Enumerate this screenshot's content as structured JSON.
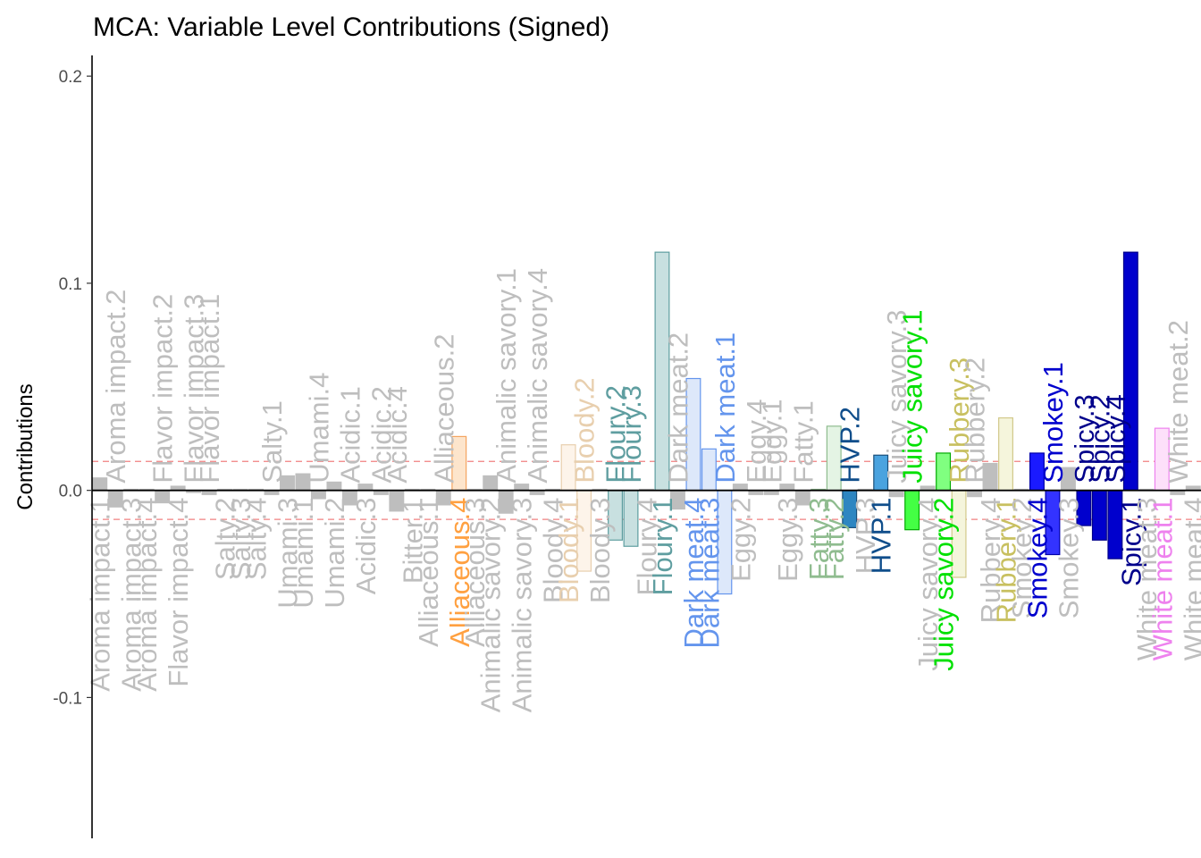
{
  "chart_data": {
    "type": "bar",
    "title": "MCA: Variable Level Contributions (Signed)",
    "xlabel": "",
    "ylabel": "Contributions",
    "ylim": [
      -0.168,
      0.21
    ],
    "yticks": [
      -0.1,
      0.0,
      0.1,
      0.2
    ],
    "ytick_labels": [
      "-0.1",
      "0.0",
      "0.1",
      "0.2"
    ],
    "threshold_lines": [
      0.014,
      -0.014
    ],
    "threshold_color": "#f08080",
    "grid": false,
    "legend": "none",
    "bars": [
      {
        "label": "Aroma impact.1",
        "value": 0.006,
        "fill": "#bebebe",
        "stroke": "#bebebe",
        "color": "#bebebe"
      },
      {
        "label": "Aroma impact.2",
        "value": -0.008,
        "fill": "#bebebe",
        "stroke": "#bebebe",
        "color": "#bebebe"
      },
      {
        "label": "Aroma impact.3",
        "value": 0.0005,
        "fill": "#bebebe",
        "stroke": "#bebebe",
        "color": "#bebebe"
      },
      {
        "label": "Aroma impact.4",
        "value": 0.0005,
        "fill": "#bebebe",
        "stroke": "#bebebe",
        "color": "#bebebe"
      },
      {
        "label": "Flavor impact.2",
        "value": -0.006,
        "fill": "#bebebe",
        "stroke": "#bebebe",
        "color": "#bebebe"
      },
      {
        "label": "Flavor impact.4",
        "value": 0.002,
        "fill": "#bebebe",
        "stroke": "#bebebe",
        "color": "#bebebe"
      },
      {
        "label": "Flavor impact.3",
        "value": -0.001,
        "fill": "#bebebe",
        "stroke": "#bebebe",
        "color": "#bebebe"
      },
      {
        "label": "Flavor impact.1",
        "value": -0.002,
        "fill": "#bebebe",
        "stroke": "#bebebe",
        "color": "#bebebe"
      },
      {
        "label": "Salty.2",
        "value": 0.0005,
        "fill": "#bebebe",
        "stroke": "#bebebe",
        "color": "#bebebe"
      },
      {
        "label": "Salty.3",
        "value": 0.0005,
        "fill": "#bebebe",
        "stroke": "#bebebe",
        "color": "#bebebe"
      },
      {
        "label": "Salty.4",
        "value": 0.0005,
        "fill": "#bebebe",
        "stroke": "#bebebe",
        "color": "#bebebe"
      },
      {
        "label": "Salty.1",
        "value": -0.002,
        "fill": "#bebebe",
        "stroke": "#bebebe",
        "color": "#bebebe"
      },
      {
        "label": "Umami.3",
        "value": 0.007,
        "fill": "#bebebe",
        "stroke": "#bebebe",
        "color": "#bebebe"
      },
      {
        "label": "Umami.1",
        "value": 0.008,
        "fill": "#bebebe",
        "stroke": "#bebebe",
        "color": "#bebebe"
      },
      {
        "label": "Umami.4",
        "value": -0.004,
        "fill": "#bebebe",
        "stroke": "#bebebe",
        "color": "#bebebe"
      },
      {
        "label": "Umami.2",
        "value": 0.004,
        "fill": "#bebebe",
        "stroke": "#bebebe",
        "color": "#bebebe"
      },
      {
        "label": "Acidic.1",
        "value": -0.007,
        "fill": "#bebebe",
        "stroke": "#bebebe",
        "color": "#bebebe"
      },
      {
        "label": "Acidic.3",
        "value": 0.003,
        "fill": "#bebebe",
        "stroke": "#bebebe",
        "color": "#bebebe"
      },
      {
        "label": "Acidic.2",
        "value": -0.002,
        "fill": "#bebebe",
        "stroke": "#bebebe",
        "color": "#bebebe"
      },
      {
        "label": "Acidic.4",
        "value": -0.01,
        "fill": "#bebebe",
        "stroke": "#bebebe",
        "color": "#bebebe"
      },
      {
        "label": "Bitter.1",
        "value": 0.0005,
        "fill": "#bebebe",
        "stroke": "#bebebe",
        "color": "#bebebe"
      },
      {
        "label": "Alliaceous.1",
        "value": 0.0005,
        "fill": "#bebebe",
        "stroke": "#bebebe",
        "color": "#bebebe"
      },
      {
        "label": "Alliaceous.2",
        "value": -0.007,
        "fill": "#bebebe",
        "stroke": "#bebebe",
        "color": "#bebebe"
      },
      {
        "label": "Alliaceous.4",
        "value": 0.026,
        "fill": "#fde5cc",
        "stroke": "#f4a460",
        "color": "#ffa040"
      },
      {
        "label": "Alliaceous.3",
        "value": 0.0005,
        "fill": "#bebebe",
        "stroke": "#bebebe",
        "color": "#bebebe"
      },
      {
        "label": "Animalic savory.2",
        "value": 0.007,
        "fill": "#bebebe",
        "stroke": "#bebebe",
        "color": "#bebebe"
      },
      {
        "label": "Animalic savory.1",
        "value": -0.011,
        "fill": "#bebebe",
        "stroke": "#bebebe",
        "color": "#bebebe"
      },
      {
        "label": "Animalic savory.3",
        "value": 0.003,
        "fill": "#bebebe",
        "stroke": "#bebebe",
        "color": "#bebebe"
      },
      {
        "label": "Animalic savory.4",
        "value": -0.002,
        "fill": "#bebebe",
        "stroke": "#bebebe",
        "color": "#bebebe"
      },
      {
        "label": "Bloody.4",
        "value": 0.0005,
        "fill": "#bebebe",
        "stroke": "#bebebe",
        "color": "#bebebe"
      },
      {
        "label": "Bloody.1",
        "value": 0.022,
        "fill": "#fdf4ea",
        "stroke": "#e8cfae",
        "color": "#e8cfae"
      },
      {
        "label": "Bloody.2",
        "value": -0.039,
        "fill": "#fdf4ea",
        "stroke": "#e8cfae",
        "color": "#e8cfae"
      },
      {
        "label": "Bloody.3",
        "value": 0.0005,
        "fill": "#bebebe",
        "stroke": "#bebebe",
        "color": "#bebebe"
      },
      {
        "label": "Floury.2",
        "value": -0.024,
        "fill": "#c8e0e0",
        "stroke": "#5f9ea0",
        "color": "#5f9ea0"
      },
      {
        "label": "Floury.3",
        "value": -0.027,
        "fill": "#c8e0e0",
        "stroke": "#5f9ea0",
        "color": "#5f9ea0"
      },
      {
        "label": "Floury.4",
        "value": 0.0005,
        "fill": "#bebebe",
        "stroke": "#bebebe",
        "color": "#bebebe"
      },
      {
        "label": "Floury.1",
        "value": 0.115,
        "fill": "#c8e0e0",
        "stroke": "#5f9ea0",
        "color": "#5f9ea0"
      },
      {
        "label": "Dark meat.2",
        "value": -0.009,
        "fill": "#bebebe",
        "stroke": "#bebebe",
        "color": "#bebebe"
      },
      {
        "label": "Dark meat.4",
        "value": 0.054,
        "fill": "#dde8fa",
        "stroke": "#6495ed",
        "color": "#6495ed"
      },
      {
        "label": "Dark meat.3",
        "value": 0.02,
        "fill": "#dde8fa",
        "stroke": "#6495ed",
        "color": "#6495ed"
      },
      {
        "label": "Dark meat.1",
        "value": -0.05,
        "fill": "#dde8fa",
        "stroke": "#6495ed",
        "color": "#6495ed"
      },
      {
        "label": "Eggy.2",
        "value": 0.003,
        "fill": "#bebebe",
        "stroke": "#bebebe",
        "color": "#bebebe"
      },
      {
        "label": "Eggy.4",
        "value": -0.002,
        "fill": "#bebebe",
        "stroke": "#bebebe",
        "color": "#bebebe"
      },
      {
        "label": "Eggy.1",
        "value": -0.002,
        "fill": "#bebebe",
        "stroke": "#bebebe",
        "color": "#bebebe"
      },
      {
        "label": "Eggy.3",
        "value": 0.003,
        "fill": "#bebebe",
        "stroke": "#bebebe",
        "color": "#bebebe"
      },
      {
        "label": "Fatty.1",
        "value": -0.007,
        "fill": "#bebebe",
        "stroke": "#bebebe",
        "color": "#bebebe"
      },
      {
        "label": "Fatty.3",
        "value": 0.0005,
        "fill": "#e4f4e4",
        "stroke": "#8fbc8f",
        "color": "#8fbc8f"
      },
      {
        "label": "Fatty.2",
        "value": 0.031,
        "fill": "#e4f4e4",
        "stroke": "#8fbc8f",
        "color": "#8fbc8f"
      },
      {
        "label": "HVP.2",
        "value": -0.018,
        "fill": "#2e86c1",
        "stroke": "#1a4f7a",
        "color": "#104e8b"
      },
      {
        "label": "HVP.3",
        "value": 0.0005,
        "fill": "#bebebe",
        "stroke": "#bebebe",
        "color": "#bebebe"
      },
      {
        "label": "HVP.1",
        "value": 0.017,
        "fill": "#4aa3df",
        "stroke": "#1a4f7a",
        "color": "#104e8b"
      },
      {
        "label": "Juicy savory.3",
        "value": -0.003,
        "fill": "#bebebe",
        "stroke": "#bebebe",
        "color": "#bebebe"
      },
      {
        "label": "Juicy savory.1",
        "value": -0.019,
        "fill": "#44ff44",
        "stroke": "#00aa00",
        "color": "#00e000"
      },
      {
        "label": "Juicy savory.4",
        "value": 0.002,
        "fill": "#bebebe",
        "stroke": "#bebebe",
        "color": "#bebebe"
      },
      {
        "label": "Juicy savory.2",
        "value": 0.018,
        "fill": "#80ff80",
        "stroke": "#00aa00",
        "color": "#00e000"
      },
      {
        "label": "Rubbery.3",
        "value": -0.042,
        "fill": "#f5f5dc",
        "stroke": "#d2c98a",
        "color": "#c8c060"
      },
      {
        "label": "Rubbery.2",
        "value": -0.003,
        "fill": "#bebebe",
        "stroke": "#bebebe",
        "color": "#bebebe"
      },
      {
        "label": "Rubbery.4",
        "value": 0.013,
        "fill": "#bebebe",
        "stroke": "#bebebe",
        "color": "#bebebe"
      },
      {
        "label": "Rubbery.1",
        "value": 0.035,
        "fill": "#f5f5dc",
        "stroke": "#d2c98a",
        "color": "#c8c060"
      },
      {
        "label": "Smokey.2",
        "value": 0.0005,
        "fill": "#bebebe",
        "stroke": "#bebebe",
        "color": "#bebebe"
      },
      {
        "label": "Smokey.4",
        "value": 0.018,
        "fill": "#1a1aff",
        "stroke": "#0000aa",
        "color": "#0000cd"
      },
      {
        "label": "Smokey.1",
        "value": -0.031,
        "fill": "#3333ff",
        "stroke": "#0000aa",
        "color": "#0000cd"
      },
      {
        "label": "Smokey.3",
        "value": 0.011,
        "fill": "#bebebe",
        "stroke": "#bebebe",
        "color": "#bebebe"
      },
      {
        "label": "Spicy.3",
        "value": -0.017,
        "fill": "#0000cd",
        "stroke": "#00008b",
        "color": "#00008b"
      },
      {
        "label": "Spicy.2",
        "value": -0.024,
        "fill": "#0000cd",
        "stroke": "#00008b",
        "color": "#00008b"
      },
      {
        "label": "Spicy.4",
        "value": -0.033,
        "fill": "#0000cd",
        "stroke": "#00008b",
        "color": "#00008b"
      },
      {
        "label": "Spicy.1",
        "value": 0.115,
        "fill": "#0000cd",
        "stroke": "#00008b",
        "color": "#00008b"
      },
      {
        "label": "White meat.3",
        "value": 0.0005,
        "fill": "#bebebe",
        "stroke": "#bebebe",
        "color": "#bebebe"
      },
      {
        "label": "White meat.1",
        "value": 0.03,
        "fill": "#fde0fa",
        "stroke": "#ee82ee",
        "color": "#ee82ee"
      },
      {
        "label": "White meat.2",
        "value": -0.002,
        "fill": "#bebebe",
        "stroke": "#bebebe",
        "color": "#bebebe"
      },
      {
        "label": "White meat.4",
        "value": 0.002,
        "fill": "#bebebe",
        "stroke": "#bebebe",
        "color": "#bebebe"
      }
    ]
  }
}
